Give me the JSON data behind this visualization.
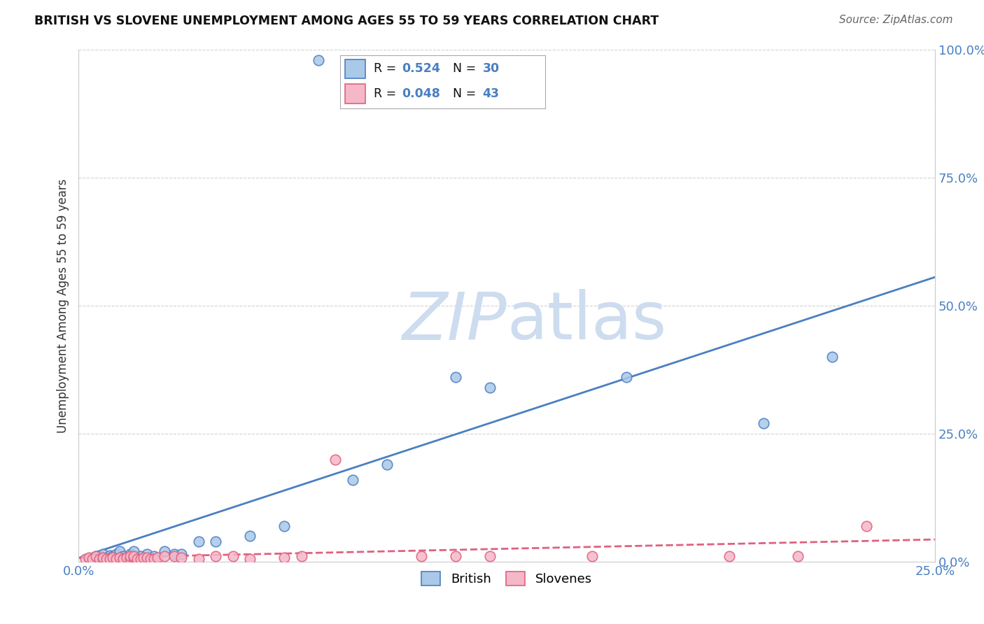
{
  "title": "BRITISH VS SLOVENE UNEMPLOYMENT AMONG AGES 55 TO 59 YEARS CORRELATION CHART",
  "source": "Source: ZipAtlas.com",
  "xlim": [
    0.0,
    0.25
  ],
  "ylim": [
    0.0,
    1.0
  ],
  "ylabel": "Unemployment Among Ages 55 to 59 years",
  "british_R": 0.524,
  "british_N": 30,
  "slovene_R": 0.048,
  "slovene_N": 43,
  "british_color": "#aac8e8",
  "british_line_color": "#4a7fc1",
  "slovene_color": "#f5b8c8",
  "slovene_line_color": "#e06080",
  "british_x": [
    0.003,
    0.005,
    0.006,
    0.007,
    0.008,
    0.009,
    0.01,
    0.011,
    0.012,
    0.013,
    0.015,
    0.016,
    0.018,
    0.02,
    0.022,
    0.025,
    0.028,
    0.03,
    0.035,
    0.04,
    0.05,
    0.06,
    0.07,
    0.08,
    0.09,
    0.11,
    0.12,
    0.16,
    0.2,
    0.22
  ],
  "british_y": [
    0.005,
    0.01,
    0.01,
    0.015,
    0.008,
    0.012,
    0.01,
    0.015,
    0.02,
    0.01,
    0.015,
    0.02,
    0.01,
    0.015,
    0.01,
    0.02,
    0.015,
    0.015,
    0.04,
    0.04,
    0.05,
    0.07,
    0.98,
    0.16,
    0.19,
    0.36,
    0.34,
    0.36,
    0.27,
    0.4
  ],
  "slovene_x": [
    0.002,
    0.003,
    0.004,
    0.005,
    0.006,
    0.007,
    0.007,
    0.008,
    0.009,
    0.01,
    0.011,
    0.012,
    0.013,
    0.013,
    0.014,
    0.015,
    0.015,
    0.016,
    0.016,
    0.017,
    0.018,
    0.019,
    0.02,
    0.021,
    0.022,
    0.023,
    0.025,
    0.028,
    0.03,
    0.035,
    0.04,
    0.045,
    0.05,
    0.06,
    0.065,
    0.075,
    0.1,
    0.11,
    0.12,
    0.15,
    0.19,
    0.21,
    0.23
  ],
  "slovene_y": [
    0.005,
    0.008,
    0.005,
    0.01,
    0.005,
    0.005,
    0.008,
    0.005,
    0.005,
    0.008,
    0.005,
    0.008,
    0.005,
    0.005,
    0.008,
    0.005,
    0.01,
    0.008,
    0.01,
    0.005,
    0.005,
    0.008,
    0.008,
    0.005,
    0.005,
    0.008,
    0.01,
    0.01,
    0.008,
    0.005,
    0.01,
    0.01,
    0.005,
    0.008,
    0.01,
    0.2,
    0.01,
    0.01,
    0.01,
    0.01,
    0.01,
    0.01,
    0.07
  ],
  "x_tick_vals": [
    0.0,
    0.25
  ],
  "x_tick_labels": [
    "0.0%",
    "25.0%"
  ],
  "y_tick_vals": [
    0.0,
    0.25,
    0.5,
    0.75,
    1.0
  ],
  "y_tick_labels": [
    "0.0%",
    "25.0%",
    "50.0%",
    "75.0%",
    "100.0%"
  ],
  "tick_color": "#4a7fc1",
  "background_color": "#ffffff",
  "grid_color": "#cccccc",
  "watermark_color": "#cddcee",
  "stat_color": "#4a7fc1",
  "label_color": "#333333"
}
